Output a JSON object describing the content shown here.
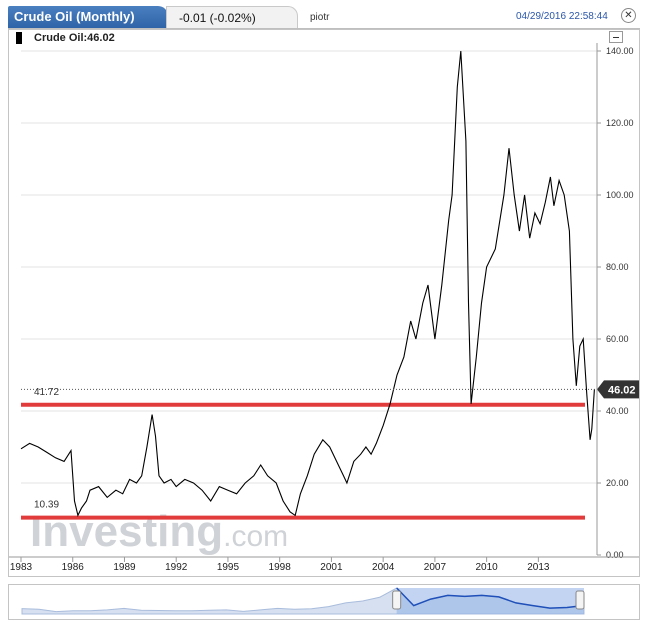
{
  "header": {
    "title": "Crude Oil (Monthly)",
    "change": "-0.01 (-0.02%)",
    "user": "piotr",
    "timestamp": "04/29/2016 22:58:44",
    "close_icon": "close-icon"
  },
  "legend": {
    "text": "Crude Oil:46.02",
    "swatch_color": "#000000"
  },
  "watermark": {
    "text_bold": "Investing",
    "text_light": ".com"
  },
  "chart_data": {
    "type": "line",
    "series_color": "#000000",
    "x_tick_labels": [
      "1983",
      "1986",
      "1989",
      "1992",
      "1995",
      "1998",
      "2001",
      "2004",
      "2007",
      "2010",
      "2013"
    ],
    "x_ticks": [
      1983,
      1986,
      1989,
      1992,
      1995,
      1998,
      2001,
      2004,
      2007,
      2010,
      2013
    ],
    "xlim": [
      1983.0,
      2016.4
    ],
    "ylim": [
      0,
      140
    ],
    "y_ticks": [
      0,
      20,
      40,
      60,
      80,
      100,
      120,
      140
    ],
    "y_tick_labels": [
      "0.00",
      "20.00",
      "40.00",
      "60.00",
      "80.00",
      "100.00",
      "120.00",
      "140.00"
    ],
    "grid": true,
    "last_value": 46.02,
    "last_value_label": "46.02",
    "last_value_color": "#333333",
    "horizontal_lines": [
      {
        "value": 41.72,
        "label": "41.72",
        "color": "#e23b3b"
      },
      {
        "value": 10.39,
        "label": "10.39",
        "color": "#e23b3b"
      }
    ],
    "x": [
      1983.0,
      1983.5,
      1984.0,
      1984.5,
      1985.0,
      1985.5,
      1985.9,
      1986.1,
      1986.3,
      1986.5,
      1986.8,
      1987.0,
      1987.5,
      1988.0,
      1988.5,
      1988.9,
      1989.3,
      1989.7,
      1990.0,
      1990.3,
      1990.6,
      1990.8,
      1991.0,
      1991.3,
      1991.7,
      1992.0,
      1992.5,
      1993.0,
      1993.5,
      1994.0,
      1994.5,
      1995.0,
      1995.5,
      1996.0,
      1996.5,
      1996.9,
      1997.3,
      1997.8,
      1998.2,
      1998.6,
      1998.9,
      1999.2,
      1999.6,
      2000.0,
      2000.5,
      2000.9,
      2001.3,
      2001.7,
      2001.9,
      2002.3,
      2002.7,
      2003.0,
      2003.3,
      2003.6,
      2004.0,
      2004.4,
      2004.8,
      2005.2,
      2005.6,
      2005.9,
      2006.3,
      2006.6,
      2007.0,
      2007.4,
      2007.8,
      2008.0,
      2008.3,
      2008.5,
      2008.8,
      2008.95,
      2009.1,
      2009.4,
      2009.7,
      2010.0,
      2010.5,
      2011.0,
      2011.3,
      2011.6,
      2011.9,
      2012.2,
      2012.5,
      2012.8,
      2013.1,
      2013.4,
      2013.7,
      2013.9,
      2014.2,
      2014.5,
      2014.8,
      2015.0,
      2015.2,
      2015.4,
      2015.6,
      2015.8,
      2016.0,
      2016.1,
      2016.25
    ],
    "y": [
      29.5,
      31,
      30,
      28.5,
      27,
      26,
      29,
      15,
      11,
      13,
      15,
      18,
      19,
      16,
      18,
      17,
      21,
      20,
      22,
      30,
      39,
      33,
      22,
      20,
      21,
      19,
      21,
      20,
      18,
      15,
      19,
      18,
      17,
      20,
      22,
      25,
      22,
      20,
      15,
      12,
      11,
      17,
      22,
      28,
      32,
      30,
      26,
      22,
      20,
      26,
      28,
      30,
      28,
      31,
      36,
      42,
      50,
      55,
      65,
      60,
      70,
      75,
      60,
      75,
      93,
      100,
      130,
      140,
      115,
      70,
      42,
      55,
      70,
      80,
      85,
      100,
      113,
      100,
      90,
      100,
      88,
      95,
      92,
      98,
      105,
      97,
      104,
      100,
      90,
      60,
      47,
      58,
      60,
      45,
      32,
      35,
      46.02
    ]
  },
  "navigator": {
    "series": [
      29,
      26,
      13,
      18,
      18,
      22,
      30,
      20,
      19,
      18,
      17,
      20,
      22,
      14,
      22,
      30,
      26,
      28,
      40,
      60,
      70,
      90,
      140,
      45,
      80,
      100,
      95,
      100,
      92,
      60,
      45,
      32,
      35,
      46
    ]
  }
}
